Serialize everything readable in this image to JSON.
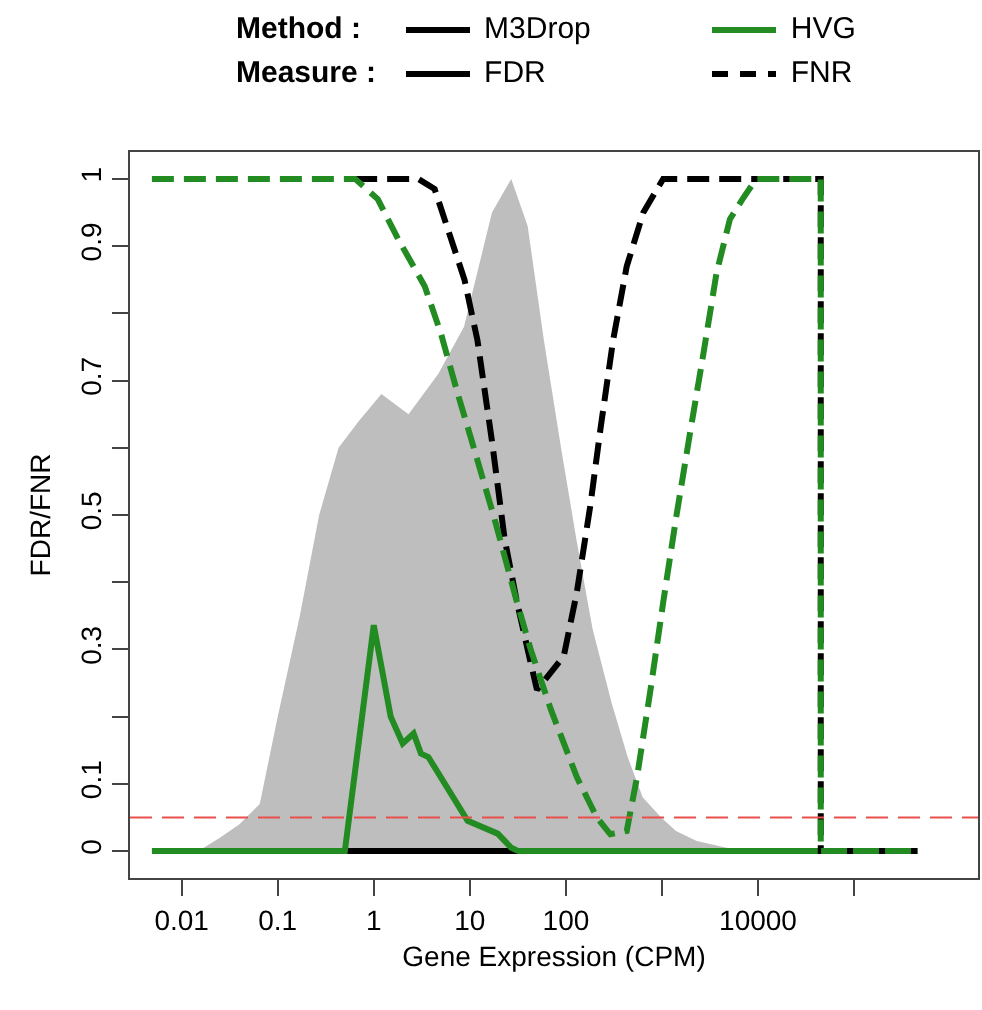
{
  "chart_data": {
    "type": "line",
    "xlabel": "Gene Expression (CPM)",
    "ylabel": "FDR/FNR",
    "log": "x",
    "grid": false,
    "marker": "none",
    "xlim": [
      0.0029,
      1950000
    ],
    "ylim": [
      -0.04,
      1.04
    ],
    "xticks": [
      0.01,
      0.1,
      1,
      10,
      100,
      {
        "value": 1000,
        "label": null
      },
      10000,
      {
        "value": 100000,
        "label": null
      }
    ],
    "yticks": [
      0,
      0.1,
      {
        "value": 0.2,
        "label": null
      },
      0.3,
      {
        "value": 0.4,
        "label": null
      },
      0.5,
      {
        "value": 0.6,
        "label": null
      },
      0.7,
      {
        "value": 0.8,
        "label": null
      },
      0.9,
      1
    ],
    "annotations": [
      "Method :",
      "M3Drop",
      "HVG",
      "Measure :",
      "FDR",
      "FNR"
    ],
    "ref_lines": [
      {
        "axis": "y",
        "value": 0.05,
        "label": null,
        "color": "#e8504a",
        "line_style": "dashed"
      }
    ],
    "series": [
      {
        "type": "area",
        "color": "#bebebe",
        "x": [
          0.015,
          0.025,
          0.04,
          0.065,
          0.1,
          0.17,
          0.27,
          0.43,
          0.7,
          1.2,
          2.3,
          4.7,
          8.7,
          17,
          27,
          40,
          59,
          89,
          130,
          190,
          300,
          440,
          630,
          980,
          1400,
          2300,
          4700,
          9500
        ],
        "values": [
          0,
          0.02,
          0.04,
          0.07,
          0.2,
          0.35,
          0.5,
          0.6,
          0.64,
          0.68,
          0.65,
          0.71,
          0.78,
          0.95,
          1,
          0.93,
          0.76,
          0.6,
          0.46,
          0.33,
          0.22,
          0.14,
          0.08,
          0.05,
          0.03,
          0.015,
          0.005,
          0
        ]
      },
      {
        "color": "#000000",
        "line_style": "solid",
        "x": [
          0.5,
          32
        ],
        "values": [
          0,
          0
        ]
      },
      {
        "color": "#228b22",
        "line_style": "solid",
        "x": [
          0.0049,
          0.5,
          1,
          1.5,
          2,
          2.6,
          3.1,
          3.7,
          9.5,
          19.5,
          27,
          32,
          457000
        ],
        "values": [
          0,
          0,
          0.336,
          0.2,
          0.16,
          0.175,
          0.145,
          0.14,
          0.045,
          0.026,
          0.005,
          0,
          0
        ]
      },
      {
        "color": "#000000",
        "line_style": "dashed",
        "x": [
          0.64,
          2.9,
          4.3,
          8.8,
          12,
          17,
          23,
          31,
          43,
          50,
          95,
          130,
          180,
          230,
          310,
          430,
          640,
          1030,
          45000,
          45000,
          457000
        ],
        "values": [
          1,
          1,
          0.985,
          0.85,
          0.76,
          0.61,
          0.465,
          0.37,
          0.28,
          0.24,
          0.29,
          0.385,
          0.515,
          0.63,
          0.76,
          0.87,
          0.95,
          1,
          1,
          0,
          0
        ]
      },
      {
        "color": "#228b22",
        "line_style": "dashed",
        "x": [
          0.0049,
          0.64,
          1.1,
          1.8,
          3.4,
          5,
          7.5,
          11,
          18,
          31,
          43,
          70,
          130,
          210,
          290,
          430,
          550,
          760,
          1030,
          1400,
          1950,
          2700,
          3700,
          5100,
          6900,
          9600,
          45000,
          45000,
          457000
        ],
        "values": [
          1,
          1,
          0.97,
          0.91,
          0.84,
          0.77,
          0.68,
          0.6,
          0.495,
          0.37,
          0.3,
          0.21,
          0.11,
          0.05,
          0.025,
          0.03,
          0.11,
          0.24,
          0.37,
          0.495,
          0.62,
          0.74,
          0.86,
          0.94,
          0.97,
          1,
          1,
          0,
          0
        ]
      }
    ]
  }
}
